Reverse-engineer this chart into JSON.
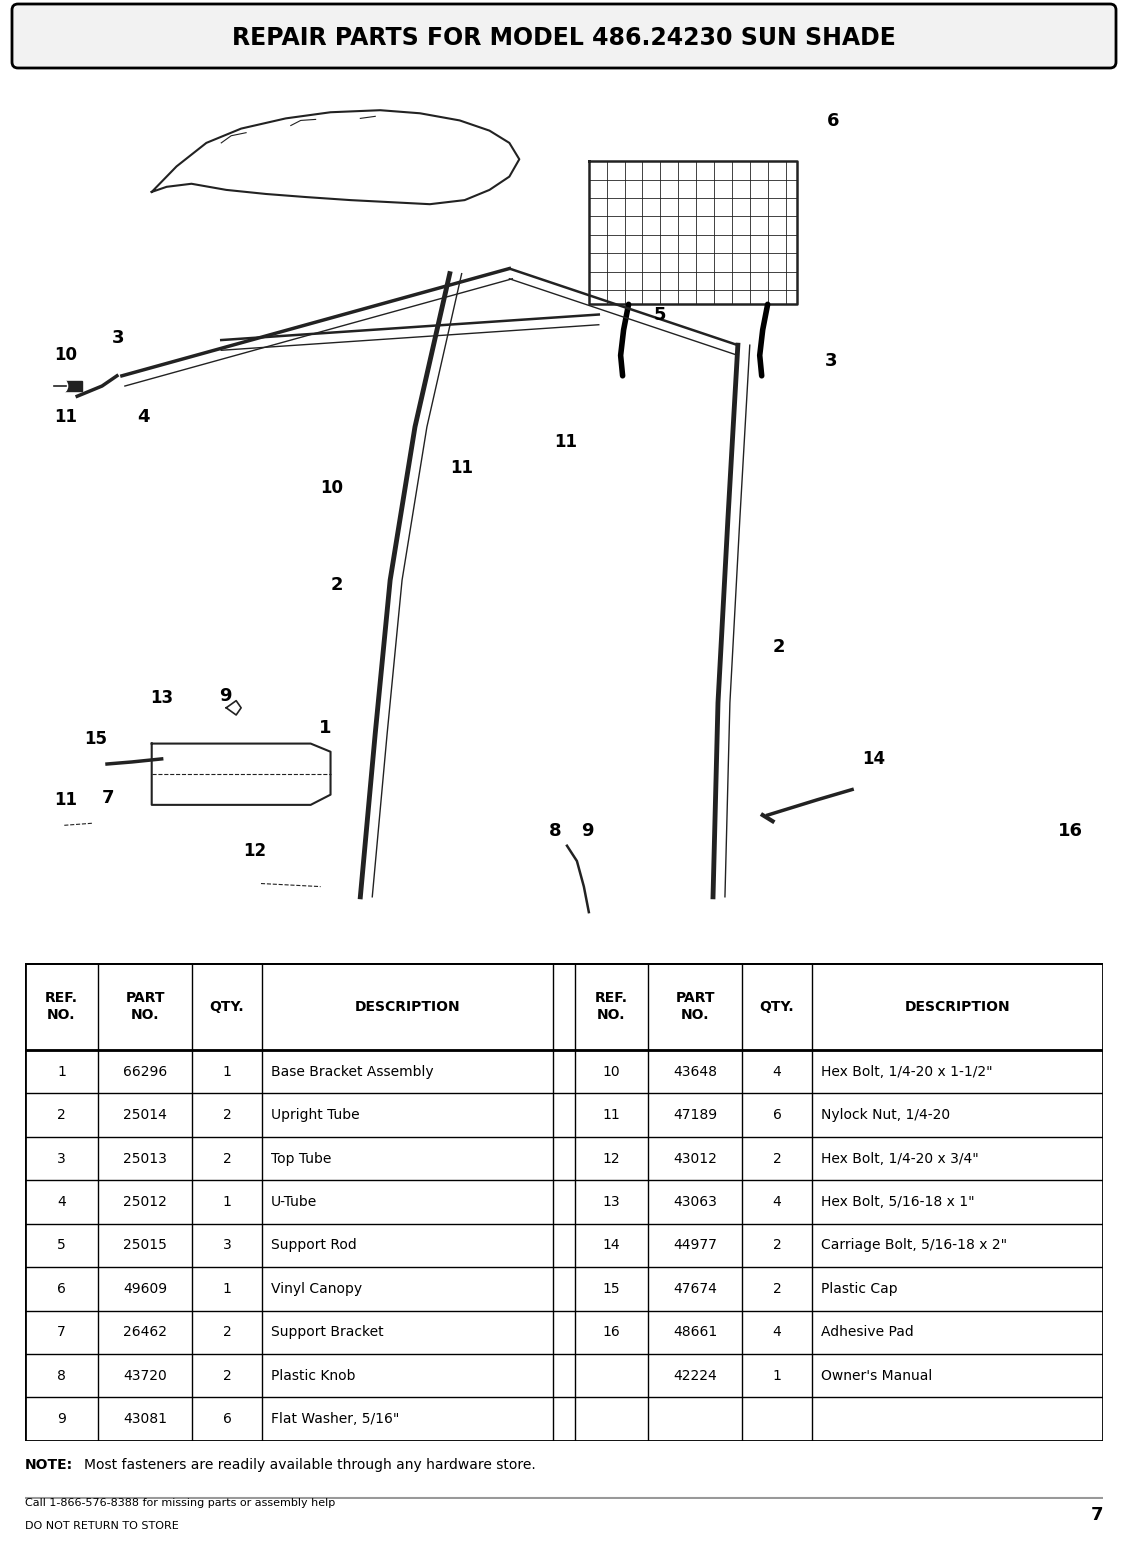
{
  "title": "REPAIR PARTS FOR MODEL 486.24230 SUN SHADE",
  "background_color": "#ffffff",
  "table_data_left": [
    [
      "1",
      "66296",
      "1",
      "Base Bracket Assembly"
    ],
    [
      "2",
      "25014",
      "2",
      "Upright Tube"
    ],
    [
      "3",
      "25013",
      "2",
      "Top Tube"
    ],
    [
      "4",
      "25012",
      "1",
      "U-Tube"
    ],
    [
      "5",
      "25015",
      "3",
      "Support Rod"
    ],
    [
      "6",
      "49609",
      "1",
      "Vinyl Canopy"
    ],
    [
      "7",
      "26462",
      "2",
      "Support Bracket"
    ],
    [
      "8",
      "43720",
      "2",
      "Plastic Knob"
    ],
    [
      "9",
      "43081",
      "6",
      "Flat Washer, 5/16\""
    ]
  ],
  "table_data_right": [
    [
      "10",
      "43648",
      "4",
      "Hex Bolt, 1/4-20 x 1-1/2\""
    ],
    [
      "11",
      "47189",
      "6",
      "Nylock Nut, 1/4-20"
    ],
    [
      "12",
      "43012",
      "2",
      "Hex Bolt, 1/4-20 x 3/4\""
    ],
    [
      "13",
      "43063",
      "4",
      "Hex Bolt, 5/16-18 x 1\""
    ],
    [
      "14",
      "44977",
      "2",
      "Carriage Bolt, 5/16-18 x 2\""
    ],
    [
      "15",
      "47674",
      "2",
      "Plastic Cap"
    ],
    [
      "16",
      "48661",
      "4",
      "Adhesive Pad"
    ],
    [
      "",
      "42224",
      "1",
      "Owner's Manual"
    ]
  ],
  "note_bold": "NOTE:",
  "note_text": "   Most fasteners are readily available through any hardware store.",
  "footer_line1": "Call 1-866-576-8388 for missing parts or assembly help",
  "footer_line2": "DO NOT RETURN TO STORE",
  "footer_page": "7"
}
